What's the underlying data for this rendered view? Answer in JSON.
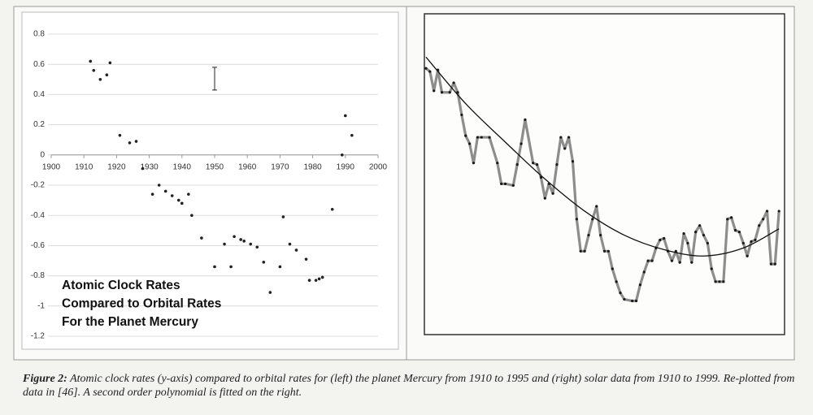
{
  "chart_data": [
    {
      "type": "scatter",
      "x": [
        1912,
        1913,
        1915,
        1917,
        1918,
        1921,
        1924,
        1926,
        1928,
        1931,
        1933,
        1935,
        1937,
        1939,
        1940,
        1942,
        1943,
        1946,
        1950,
        1953,
        1955,
        1956,
        1958,
        1959,
        1961,
        1963,
        1965,
        1967,
        1970,
        1971,
        1973,
        1975,
        1978,
        1979,
        1981,
        1982,
        1983,
        1986,
        1989,
        1990,
        1992
      ],
      "values": [
        0.62,
        0.56,
        0.5,
        0.53,
        0.61,
        0.13,
        0.08,
        0.09,
        -0.09,
        -0.26,
        -0.2,
        -0.24,
        -0.27,
        -0.3,
        -0.32,
        -0.26,
        -0.4,
        -0.55,
        -0.74,
        -0.59,
        -0.74,
        -0.54,
        -0.56,
        -0.57,
        -0.59,
        -0.61,
        -0.71,
        -0.91,
        -0.74,
        -0.41,
        -0.59,
        -0.63,
        -0.69,
        -0.83,
        -0.83,
        -0.82,
        -0.81,
        -0.36,
        0,
        0.26,
        0.13
      ],
      "color": "#222222",
      "error_bar": {
        "x": 1950,
        "value": 0.505,
        "error": 0.075
      },
      "xlim": [
        1900,
        2000
      ],
      "xticks": [
        1900,
        1910,
        1920,
        1930,
        1940,
        1950,
        1960,
        1970,
        1980,
        1990,
        2000
      ],
      "ylim": [
        -1.2,
        0.8
      ],
      "yticks": [
        0.8,
        0.6,
        0.4,
        0.2,
        0,
        -0.2,
        -0.4,
        -0.6,
        -0.8,
        -1,
        -1.2
      ],
      "grid": true,
      "annotation": [
        "Atomic Clock Rates",
        "Compared to Orbital Rates",
        "For the Planet Mercury"
      ]
    },
    {
      "type": "line",
      "x": [
        1910,
        1911,
        1912,
        1913,
        1914,
        1916,
        1917,
        1918,
        1919,
        1920,
        1921,
        1922,
        1923,
        1924,
        1926,
        1928,
        1929,
        1930,
        1932,
        1933,
        1934,
        1935,
        1937,
        1938,
        1939,
        1940,
        1941,
        1942,
        1943,
        1944,
        1945,
        1946,
        1947,
        1948,
        1949,
        1950,
        1951,
        1952,
        1953,
        1954,
        1955,
        1956,
        1957,
        1958,
        1959,
        1960,
        1962,
        1963,
        1964,
        1965,
        1966,
        1967,
        1968,
        1969,
        1970,
        1971,
        1972,
        1973,
        1974,
        1975,
        1976,
        1977,
        1978,
        1979,
        1980,
        1981,
        1982,
        1983,
        1984,
        1985,
        1986,
        1987,
        1988,
        1989,
        1990,
        1991,
        1992,
        1993,
        1994,
        1995,
        1996,
        1997,
        1998,
        1999
      ],
      "values": [
        0.46,
        0.44,
        0.32,
        0.45,
        0.31,
        0.31,
        0.37,
        0.31,
        0.17,
        0.04,
        -0.01,
        -0.13,
        0.03,
        0.03,
        0.03,
        -0.13,
        -0.26,
        -0.26,
        -0.27,
        -0.14,
        -0.01,
        0.14,
        -0.13,
        -0.14,
        -0.22,
        -0.35,
        -0.26,
        -0.32,
        -0.14,
        0.03,
        -0.04,
        0.03,
        -0.12,
        -0.48,
        -0.68,
        -0.68,
        -0.58,
        -0.48,
        -0.4,
        -0.58,
        -0.68,
        -0.68,
        -0.79,
        -0.87,
        -0.94,
        -0.98,
        -0.99,
        -0.99,
        -0.89,
        -0.81,
        -0.74,
        -0.74,
        -0.66,
        -0.61,
        -0.6,
        -0.68,
        -0.74,
        -0.68,
        -0.75,
        -0.57,
        -0.63,
        -0.75,
        -0.56,
        -0.52,
        -0.58,
        -0.63,
        -0.79,
        -0.87,
        -0.87,
        -0.87,
        -0.48,
        -0.47,
        -0.55,
        -0.56,
        -0.63,
        -0.71,
        -0.62,
        -0.61,
        -0.52,
        -0.48,
        -0.43,
        -0.76,
        -0.76,
        -0.43
      ],
      "color": "#8d8d8d",
      "marker_color": "#1a1a1a",
      "fit": {
        "x": [
          1910,
          1920,
          1930,
          1940,
          1950,
          1960,
          1970,
          1980,
          1990,
          1999
        ],
        "values": [
          0.53,
          0.24,
          0,
          -0.23,
          -0.43,
          -0.58,
          -0.67,
          -0.71,
          -0.66,
          -0.54
        ],
        "color": "#111111"
      },
      "xlim": [
        1909.6,
        2000.4
      ],
      "ylim": [
        -1.2,
        0.8
      ]
    }
  ],
  "caption": {
    "label": "Figure 2:",
    "text": "Atomic clock rates (y-axis) compared to orbital rates for (left) the planet Mercury from 1910 to 1995 and (right) solar data from 1910 to 1999. Re-plotted from data in [46]. A second order polynomial is fitted on the right."
  }
}
